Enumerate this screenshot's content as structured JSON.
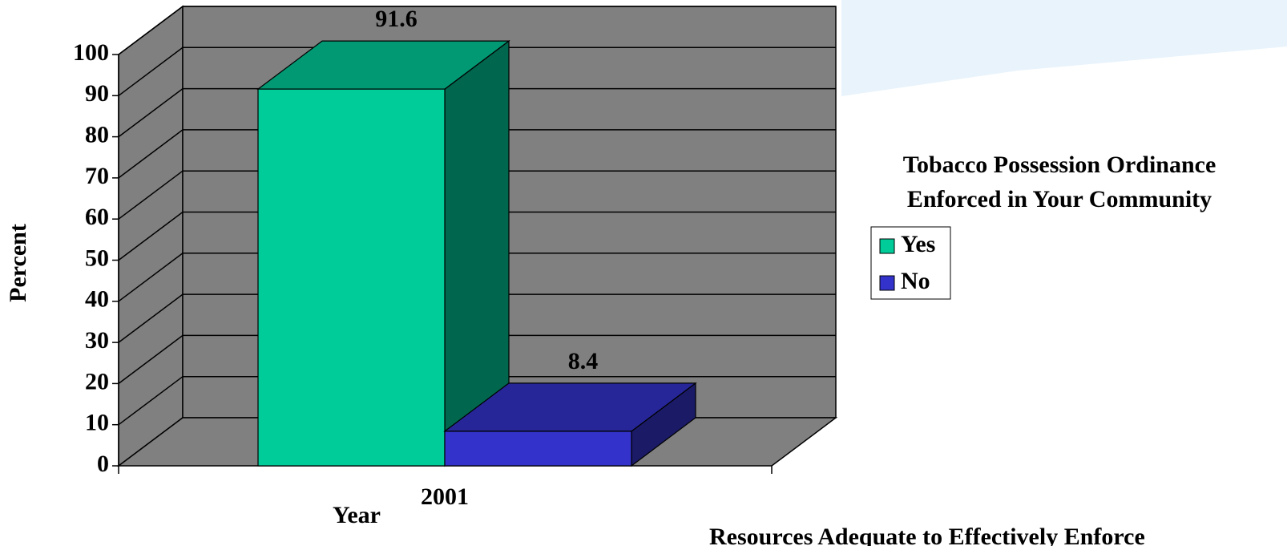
{
  "chart_data": {
    "type": "bar3d",
    "y_label": "Percent",
    "x_label": "Year",
    "categories": [
      "2001"
    ],
    "series": [
      {
        "name": "Yes",
        "color": "#00cc99",
        "values": [
          91.6
        ]
      },
      {
        "name": "No",
        "color": "#3333cc",
        "values": [
          8.4
        ]
      }
    ],
    "ylim": [
      0,
      100
    ],
    "yticks": [
      0,
      10,
      20,
      30,
      40,
      50,
      60,
      70,
      80,
      90,
      100
    ],
    "grid": true,
    "legend_title": [
      "Tobacco Possession Ordinance",
      "Enforced in Your Community"
    ],
    "legend": "right",
    "annotation": "Resources Adequate to Effectively Enforce"
  }
}
